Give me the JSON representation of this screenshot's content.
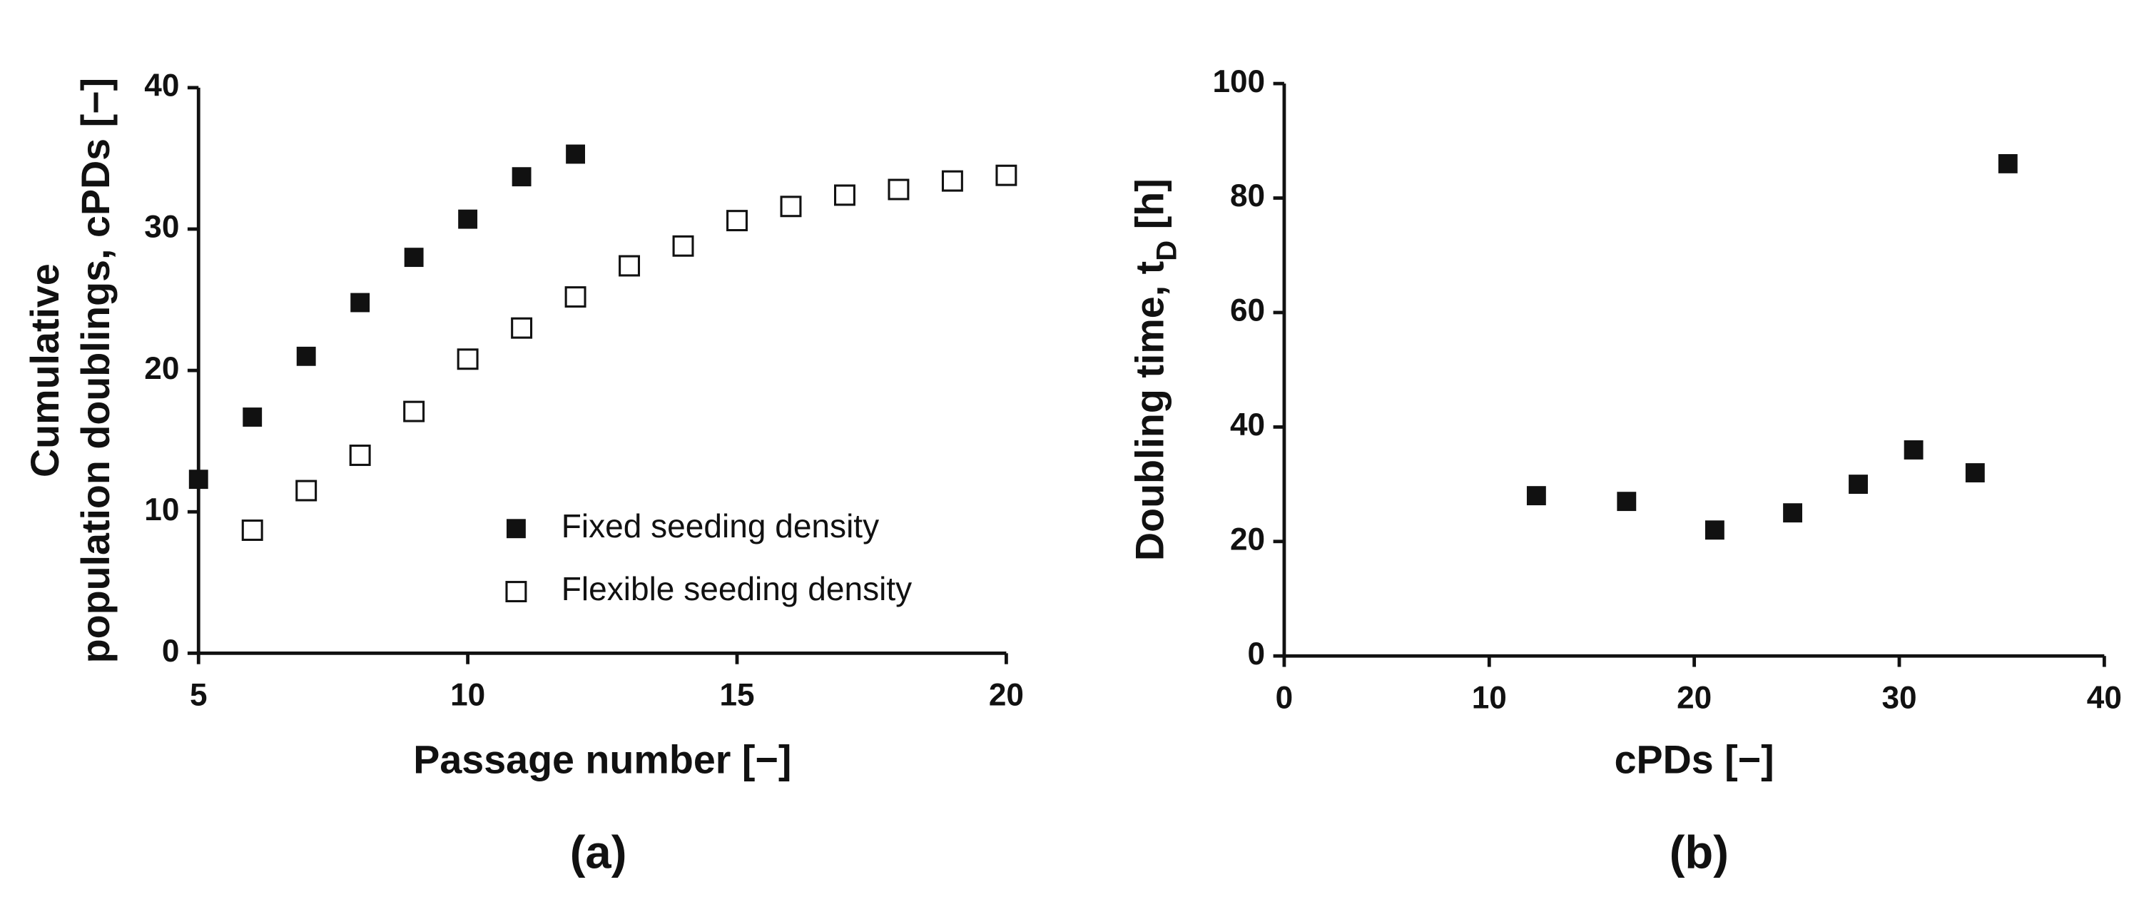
{
  "chart_data": [
    {
      "type": "scatter",
      "caption": "(a)",
      "xlabel": "Passage number [−]",
      "ylabel": [
        "Cumulative",
        "population doublings, cPDs [−]"
      ],
      "xlim": [
        5,
        20
      ],
      "xticks": [
        5,
        10,
        15,
        20
      ],
      "ylim": [
        0,
        40
      ],
      "yticks": [
        0,
        10,
        20,
        30,
        40
      ],
      "legend": "lower right",
      "series": [
        {
          "name": "Fixed seeding density",
          "color": "#111111",
          "marker": "filled-square",
          "x": [
            5,
            6,
            7,
            8,
            9,
            10,
            11,
            12
          ],
          "values": [
            12.3,
            16.7,
            21,
            24.8,
            28,
            30.7,
            33.7,
            35.3
          ]
        },
        {
          "name": "Flexible seeding density",
          "color": "#111111",
          "marker": "open-square",
          "x": [
            6,
            7,
            8,
            9,
            10,
            11,
            12,
            13,
            14,
            15,
            16,
            17,
            18,
            19,
            20
          ],
          "values": [
            8.7,
            11.5,
            14,
            17.1,
            20.8,
            23,
            25.2,
            27.4,
            28.8,
            30.6,
            31.6,
            32.4,
            32.8,
            33.4,
            33.8
          ]
        }
      ]
    },
    {
      "type": "scatter",
      "caption": "(b)",
      "xlabel": "cPDs [−]",
      "ylabel": [
        "Doubling time, t",
        "D",
        " [h]"
      ],
      "xlim": [
        0,
        40
      ],
      "xticks": [
        0,
        10,
        20,
        30,
        40
      ],
      "ylim": [
        0,
        100
      ],
      "yticks": [
        0,
        20,
        40,
        60,
        80,
        100
      ],
      "series": [
        {
          "color": "#111111",
          "marker": "filled-square",
          "x": [
            12.3,
            16.7,
            21,
            24.8,
            28,
            30.7,
            33.7,
            35.3
          ],
          "values": [
            28,
            27,
            22,
            25,
            30,
            36,
            32,
            86
          ]
        }
      ]
    }
  ]
}
